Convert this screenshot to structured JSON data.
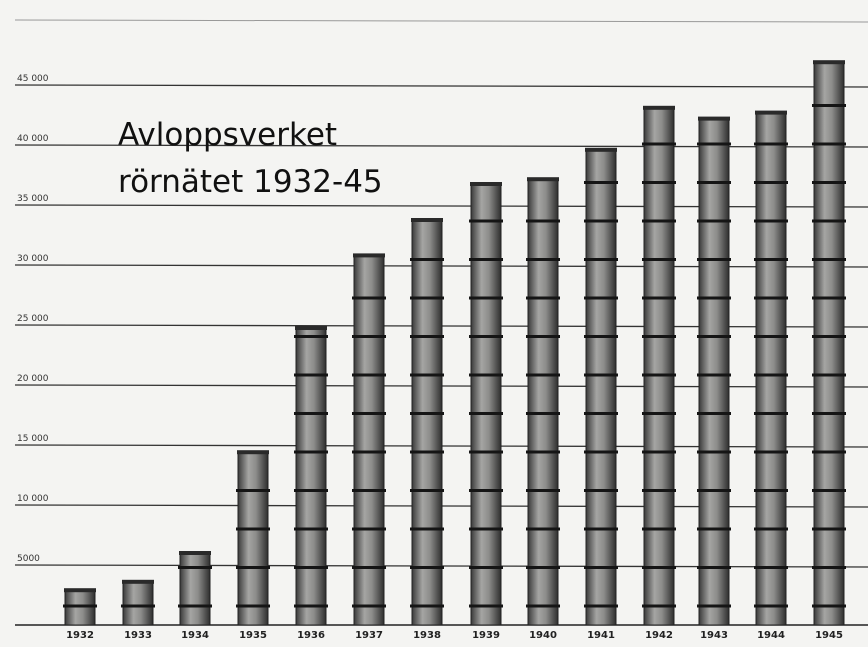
{
  "chart_data": {
    "type": "bar",
    "title": [
      "Avloppsverket",
      "rörnätet 1932-45"
    ],
    "categories": [
      "1932",
      "1933",
      "1934",
      "1935",
      "1936",
      "1937",
      "1938",
      "1939",
      "1940",
      "1941",
      "1942",
      "1943",
      "1944",
      "1945"
    ],
    "values": [
      2900,
      3600,
      6000,
      14400,
      24750,
      30800,
      33750,
      36750,
      37150,
      39600,
      43100,
      42200,
      42700,
      46900
    ],
    "color": "#8a8a88",
    "ylim": [
      0,
      50000
    ],
    "yticks": [
      {
        "value": 5000,
        "label": "5000"
      },
      {
        "value": 10000,
        "label": "10 000"
      },
      {
        "value": 15000,
        "label": "15 000"
      },
      {
        "value": 20000,
        "label": "20 000"
      },
      {
        "value": 25000,
        "label": "25 000"
      },
      {
        "value": 30000,
        "label": "30 000"
      },
      {
        "value": 35000,
        "label": "35 000"
      },
      {
        "value": 40000,
        "label": "40 000"
      },
      {
        "value": 45000,
        "label": "45 000"
      }
    ],
    "grid": true
  }
}
